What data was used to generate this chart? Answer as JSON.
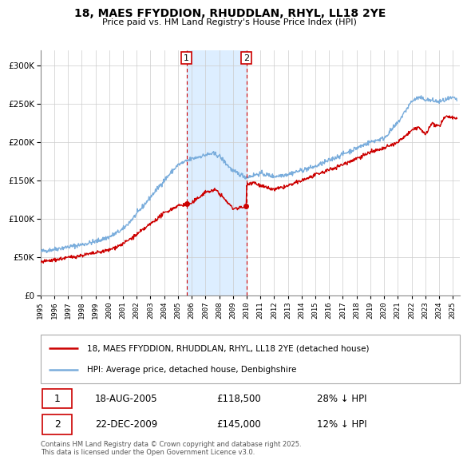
{
  "title": "18, MAES FFYDDION, RHUDDLAN, RHYL, LL18 2YE",
  "subtitle": "Price paid vs. HM Land Registry's House Price Index (HPI)",
  "legend_line1": "18, MAES FFYDDION, RHUDDLAN, RHYL, LL18 2YE (detached house)",
  "legend_line2": "HPI: Average price, detached house, Denbighshire",
  "marker1_date": "18-AUG-2005",
  "marker1_price": 118500,
  "marker1_hpi": "28% ↓ HPI",
  "marker2_date": "22-DEC-2009",
  "marker2_price": 145000,
  "marker2_hpi": "12% ↓ HPI",
  "red_color": "#cc0000",
  "blue_color": "#7aaddc",
  "shade_color": "#ddeeff",
  "background_color": "#ffffff",
  "grid_color": "#cccccc",
  "ylim": [
    0,
    320000
  ],
  "xlim_start": 1995.0,
  "xlim_end": 2025.5,
  "marker1_x": 2005.63,
  "marker2_x": 2009.98,
  "footnote": "Contains HM Land Registry data © Crown copyright and database right 2025.\nThis data is licensed under the Open Government Licence v3.0."
}
